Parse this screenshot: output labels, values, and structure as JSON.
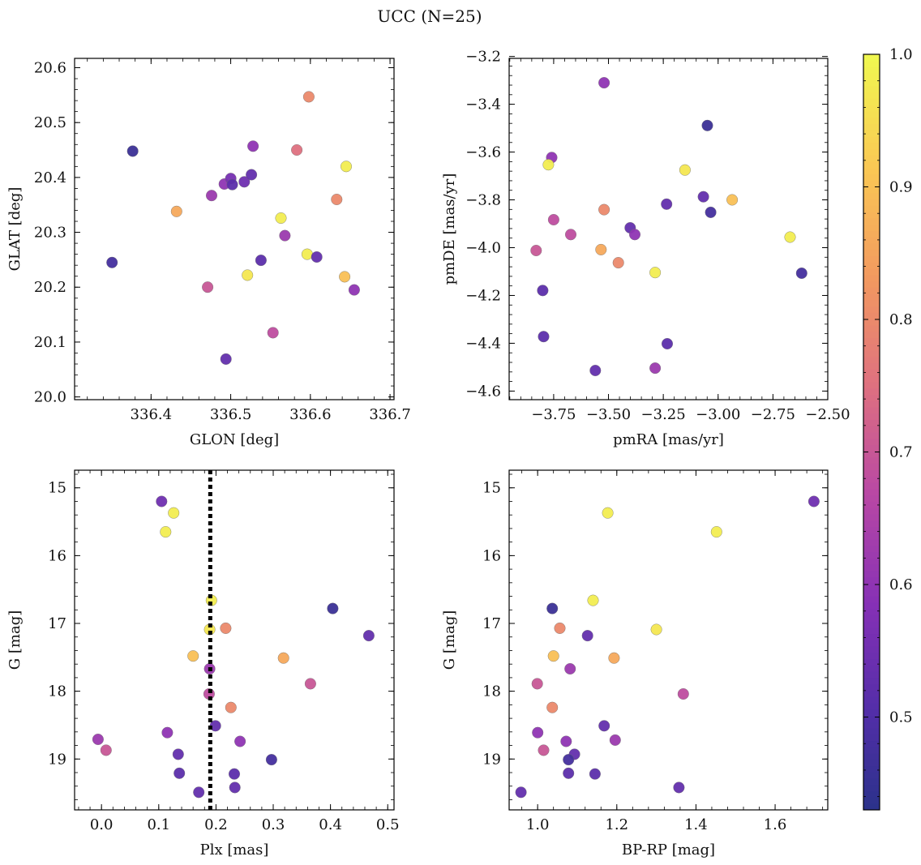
{
  "figure": {
    "title": "UCC (N=25)"
  },
  "chart_data": [
    {
      "type": "scatter",
      "xlabel": "GLON [deg]",
      "ylabel": "GLAT [deg]",
      "xlim": [
        336.304,
        336.705
      ],
      "ylim": [
        19.995,
        20.617
      ],
      "x_ticks": [
        336.4,
        336.5,
        336.6,
        336.7
      ],
      "x_tick_labels": [
        "336.4",
        "336.5",
        "336.6",
        "336.7"
      ],
      "y_ticks": [
        20.0,
        20.1,
        20.2,
        20.3,
        20.4,
        20.5,
        20.6
      ],
      "y_tick_labels": [
        "20.0",
        "20.1",
        "20.2",
        "20.3",
        "20.4",
        "20.5",
        "20.6"
      ],
      "points": [
        {
          "x": 336.377,
          "y": 20.448,
          "c": 0.46
        },
        {
          "x": 336.351,
          "y": 20.245,
          "c": 0.48
        },
        {
          "x": 336.432,
          "y": 20.338,
          "c": 0.86
        },
        {
          "x": 336.476,
          "y": 20.367,
          "c": 0.62
        },
        {
          "x": 336.471,
          "y": 20.2,
          "c": 0.7
        },
        {
          "x": 336.492,
          "y": 20.388,
          "c": 0.6
        },
        {
          "x": 336.5,
          "y": 20.398,
          "c": 0.56
        },
        {
          "x": 336.502,
          "y": 20.387,
          "c": 0.52
        },
        {
          "x": 336.517,
          "y": 20.392,
          "c": 0.55
        },
        {
          "x": 336.526,
          "y": 20.405,
          "c": 0.53
        },
        {
          "x": 336.528,
          "y": 20.457,
          "c": 0.6
        },
        {
          "x": 336.494,
          "y": 20.069,
          "c": 0.53
        },
        {
          "x": 336.521,
          "y": 20.222,
          "c": 0.97
        },
        {
          "x": 336.538,
          "y": 20.249,
          "c": 0.52
        },
        {
          "x": 336.553,
          "y": 20.117,
          "c": 0.68
        },
        {
          "x": 336.563,
          "y": 20.326,
          "c": 0.98
        },
        {
          "x": 336.568,
          "y": 20.294,
          "c": 0.62
        },
        {
          "x": 336.583,
          "y": 20.45,
          "c": 0.75
        },
        {
          "x": 336.598,
          "y": 20.547,
          "c": 0.8
        },
        {
          "x": 336.596,
          "y": 20.26,
          "c": 0.98
        },
        {
          "x": 336.608,
          "y": 20.255,
          "c": 0.53
        },
        {
          "x": 336.633,
          "y": 20.36,
          "c": 0.8
        },
        {
          "x": 336.643,
          "y": 20.219,
          "c": 0.9
        },
        {
          "x": 336.645,
          "y": 20.42,
          "c": 0.98
        },
        {
          "x": 336.655,
          "y": 20.195,
          "c": 0.6
        }
      ]
    },
    {
      "type": "scatter",
      "xlabel": "pmRA [mas/yr]",
      "ylabel": "pmDE [mas/yr]",
      "xlim": [
        -3.953,
        -2.5
      ],
      "ylim": [
        -4.636,
        -3.208
      ],
      "x_ticks": [
        -3.75,
        -3.5,
        -3.25,
        -3.0,
        -2.75,
        -2.5
      ],
      "x_tick_labels": [
        "−3.75",
        "−3.50",
        "−3.25",
        "−3.00",
        "−2.75",
        "−2.50"
      ],
      "y_ticks": [
        -4.6,
        -4.4,
        -4.2,
        -4.0,
        -3.8,
        -3.6,
        -3.4,
        -3.2
      ],
      "y_tick_labels": [
        "−4.6",
        "−4.4",
        "−4.2",
        "−4.0",
        "−3.8",
        "−3.6",
        "−3.4",
        "−3.2"
      ],
      "points": [
        {
          "x": -3.52,
          "y": -3.31,
          "c": 0.6
        },
        {
          "x": -3.759,
          "y": -3.623,
          "c": 0.6
        },
        {
          "x": -3.774,
          "y": -3.653,
          "c": 0.98
        },
        {
          "x": -3.75,
          "y": -3.883,
          "c": 0.68
        },
        {
          "x": -3.672,
          "y": -3.945,
          "c": 0.68
        },
        {
          "x": -3.52,
          "y": -3.841,
          "c": 0.8
        },
        {
          "x": -3.83,
          "y": -4.012,
          "c": 0.7
        },
        {
          "x": -3.8,
          "y": -4.179,
          "c": 0.52
        },
        {
          "x": -3.796,
          "y": -4.372,
          "c": 0.52
        },
        {
          "x": -3.534,
          "y": -4.008,
          "c": 0.86
        },
        {
          "x": -3.455,
          "y": -4.063,
          "c": 0.8
        },
        {
          "x": -3.401,
          "y": -3.917,
          "c": 0.53
        },
        {
          "x": -3.38,
          "y": -3.945,
          "c": 0.6
        },
        {
          "x": -3.287,
          "y": -4.104,
          "c": 0.98
        },
        {
          "x": -3.287,
          "y": -4.504,
          "c": 0.62
        },
        {
          "x": -3.56,
          "y": -4.514,
          "c": 0.53
        },
        {
          "x": -3.235,
          "y": -3.818,
          "c": 0.53
        },
        {
          "x": -3.232,
          "y": -4.402,
          "c": 0.52
        },
        {
          "x": -3.151,
          "y": -3.675,
          "c": 0.97
        },
        {
          "x": -3.067,
          "y": -3.787,
          "c": 0.53
        },
        {
          "x": -3.049,
          "y": -3.489,
          "c": 0.46
        },
        {
          "x": -3.034,
          "y": -3.852,
          "c": 0.48
        },
        {
          "x": -2.936,
          "y": -3.8,
          "c": 0.9
        },
        {
          "x": -2.672,
          "y": -3.956,
          "c": 0.98
        },
        {
          "x": -2.619,
          "y": -4.107,
          "c": 0.48
        }
      ]
    },
    {
      "type": "scatter",
      "xlabel": "Plx [mas]",
      "ylabel": "G [mag]",
      "xlim": [
        -0.047,
        0.511
      ],
      "ylim": [
        19.75,
        14.74
      ],
      "x_ticks": [
        0.0,
        0.1,
        0.2,
        0.3,
        0.4,
        0.5
      ],
      "x_tick_labels": [
        "0.0",
        "0.1",
        "0.2",
        "0.3",
        "0.4",
        "0.5"
      ],
      "y_ticks": [
        15,
        16,
        17,
        18,
        19
      ],
      "y_tick_labels": [
        "15",
        "16",
        "17",
        "18",
        "19"
      ],
      "vline": 0.19,
      "points": [
        {
          "x": 0.105,
          "y": 15.2,
          "c": 0.55
        },
        {
          "x": 0.126,
          "y": 15.37,
          "c": 0.98
        },
        {
          "x": 0.112,
          "y": 15.65,
          "c": 0.98
        },
        {
          "x": 0.192,
          "y": 16.66,
          "c": 0.98
        },
        {
          "x": 0.189,
          "y": 17.09,
          "c": 0.97
        },
        {
          "x": 0.217,
          "y": 17.07,
          "c": 0.8
        },
        {
          "x": 0.16,
          "y": 17.48,
          "c": 0.9
        },
        {
          "x": 0.189,
          "y": 17.67,
          "c": 0.62
        },
        {
          "x": 0.188,
          "y": 18.04,
          "c": 0.68
        },
        {
          "x": 0.226,
          "y": 18.24,
          "c": 0.8
        },
        {
          "x": 0.318,
          "y": 17.51,
          "c": 0.86
        },
        {
          "x": 0.365,
          "y": 17.89,
          "c": 0.7
        },
        {
          "x": 0.404,
          "y": 16.78,
          "c": 0.46
        },
        {
          "x": 0.467,
          "y": 17.18,
          "c": 0.53
        },
        {
          "x": 0.199,
          "y": 18.51,
          "c": 0.53
        },
        {
          "x": 0.242,
          "y": 18.74,
          "c": 0.6
        },
        {
          "x": 0.115,
          "y": 18.61,
          "c": 0.6
        },
        {
          "x": -0.006,
          "y": 18.71,
          "c": 0.62
        },
        {
          "x": 0.008,
          "y": 18.87,
          "c": 0.7
        },
        {
          "x": 0.134,
          "y": 18.93,
          "c": 0.53
        },
        {
          "x": 0.136,
          "y": 19.21,
          "c": 0.52
        },
        {
          "x": 0.232,
          "y": 19.22,
          "c": 0.52
        },
        {
          "x": 0.297,
          "y": 19.01,
          "c": 0.48
        },
        {
          "x": 0.233,
          "y": 19.42,
          "c": 0.53
        },
        {
          "x": 0.17,
          "y": 19.49,
          "c": 0.53
        }
      ]
    },
    {
      "type": "scatter",
      "xlabel": "BP-RP [mag]",
      "ylabel": "G [mag]",
      "xlim": [
        0.928,
        1.733
      ],
      "ylim": [
        19.75,
        14.74
      ],
      "x_ticks": [
        1.0,
        1.2,
        1.4,
        1.6
      ],
      "x_tick_labels": [
        "1.0",
        "1.2",
        "1.4",
        "1.6"
      ],
      "y_ticks": [
        15,
        16,
        17,
        18,
        19
      ],
      "y_tick_labels": [
        "15",
        "16",
        "17",
        "18",
        "19"
      ],
      "points": [
        {
          "x": 1.698,
          "y": 15.2,
          "c": 0.55
        },
        {
          "x": 1.177,
          "y": 15.37,
          "c": 0.98
        },
        {
          "x": 1.452,
          "y": 15.65,
          "c": 0.98
        },
        {
          "x": 1.037,
          "y": 16.78,
          "c": 0.46
        },
        {
          "x": 1.14,
          "y": 16.66,
          "c": 0.98
        },
        {
          "x": 1.056,
          "y": 17.07,
          "c": 0.8
        },
        {
          "x": 1.126,
          "y": 17.18,
          "c": 0.53
        },
        {
          "x": 1.3,
          "y": 17.09,
          "c": 0.97
        },
        {
          "x": 1.04,
          "y": 17.48,
          "c": 0.9
        },
        {
          "x": 1.193,
          "y": 17.51,
          "c": 0.86
        },
        {
          "x": 1.082,
          "y": 17.67,
          "c": 0.62
        },
        {
          "x": 0.999,
          "y": 17.89,
          "c": 0.7
        },
        {
          "x": 1.368,
          "y": 18.04,
          "c": 0.68
        },
        {
          "x": 1.037,
          "y": 18.24,
          "c": 0.8
        },
        {
          "x": 1.168,
          "y": 18.51,
          "c": 0.53
        },
        {
          "x": 1.0,
          "y": 18.61,
          "c": 0.6
        },
        {
          "x": 1.072,
          "y": 18.74,
          "c": 0.6
        },
        {
          "x": 1.196,
          "y": 18.72,
          "c": 0.62
        },
        {
          "x": 1.015,
          "y": 18.87,
          "c": 0.7
        },
        {
          "x": 1.093,
          "y": 18.93,
          "c": 0.53
        },
        {
          "x": 1.078,
          "y": 19.01,
          "c": 0.48
        },
        {
          "x": 1.078,
          "y": 19.21,
          "c": 0.52
        },
        {
          "x": 1.145,
          "y": 19.22,
          "c": 0.52
        },
        {
          "x": 1.357,
          "y": 19.42,
          "c": 0.53
        },
        {
          "x": 0.958,
          "y": 19.49,
          "c": 0.53
        }
      ]
    }
  ],
  "colorbar": {
    "range": [
      0.43,
      1.0
    ],
    "ticks": [
      0.5,
      0.6,
      0.7,
      0.8,
      0.9,
      1.0
    ],
    "tick_labels": [
      "0.5",
      "0.6",
      "0.7",
      "0.8",
      "0.9",
      "1.0"
    ],
    "colormap": "plasma"
  }
}
